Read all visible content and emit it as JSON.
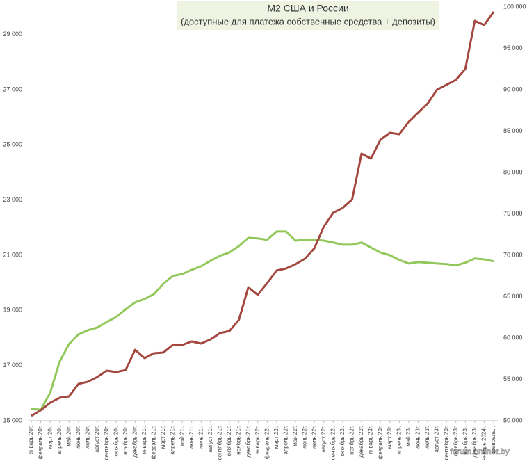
{
  "chart_data": {
    "type": "line",
    "title": "М2 США и России",
    "subtitle": "(доступные для платежа собственные средства + депозиты)",
    "watermark": "forum.onliner.by",
    "categories": [
      "январь 20г.",
      "февраль 20г.",
      "март 20г.",
      "апрель 20г.",
      "май 20г.",
      "июнь 20г.",
      "июль 20г.",
      "август 20г.",
      "сентябрь 20г.",
      "октябрь 20г.",
      "ноябрь 20г.",
      "декабрь 20г.",
      "январь 21г.",
      "февраль 21г.",
      "март 21г.",
      "апрель 21г.",
      "май 21г.",
      "июнь 21г.",
      "июль 21г.",
      "август 21г.",
      "сентябрь 21г.",
      "октябрь 21г.",
      "ноябрь 21г.",
      "декабрь 21г.",
      "январь 22г.",
      "февраль 22г.",
      "март 22г.",
      "апрель 22г.",
      "май 22г.",
      "июнь 22г.",
      "июль 22г.",
      "август 22г.",
      "сентябрь 22г.",
      "октябрь 22г.",
      "ноябрь 22г.",
      "декабрь 22г.",
      "январь 23г.",
      "февраль 23г.",
      "март 23г.",
      "апрель 23г.",
      "май 23г.",
      "июнь 23г.",
      "июль 23г.",
      "август 23г.",
      "сентябрь 23г.",
      "октябрь 23г.",
      "ноябрь 23г.",
      "декабрь 23г.",
      "январь 2024г.",
      "февраль..."
    ],
    "series": [
      {
        "color": "#92c85a",
        "values": [
          15430,
          15400,
          16010,
          17140,
          17780,
          18130,
          18280,
          18380,
          18580,
          18760,
          19040,
          19290,
          19410,
          19590,
          19970,
          20250,
          20320,
          20470,
          20600,
          20800,
          20980,
          21100,
          21330,
          21630,
          21610,
          21560,
          21860,
          21860,
          21530,
          21560,
          21560,
          21530,
          21460,
          21380,
          21380,
          21460,
          21280,
          21100,
          21000,
          20830,
          20700,
          20750,
          20730,
          20700,
          20680,
          20630,
          20730,
          20880,
          20850,
          20780
        ]
      },
      {
        "color": "#a3473f",
        "axis": "y2",
        "values": [
          50590,
          51260,
          52180,
          52770,
          52940,
          54450,
          54710,
          55290,
          56050,
          55880,
          56130,
          58570,
          57560,
          58150,
          58240,
          59160,
          59160,
          59580,
          59330,
          59830,
          60590,
          60840,
          62180,
          66130,
          65210,
          66640,
          68150,
          68400,
          68910,
          69580,
          70840,
          73450,
          75130,
          75710,
          76720,
          82270,
          81680,
          83950,
          84790,
          84620,
          86130,
          87230,
          88320,
          90000,
          90590,
          91180,
          92520,
          98320,
          97820,
          99410
        ]
      }
    ],
    "ylim": [
      15000,
      30000
    ],
    "yticks": [
      {
        "value": 15000,
        "label": "15 000"
      },
      {
        "value": 17000,
        "label": "17 000"
      },
      {
        "value": 19000,
        "label": "19 000"
      },
      {
        "value": 21000,
        "label": "21 000"
      },
      {
        "value": 23000,
        "label": "23 000"
      },
      {
        "value": 25000,
        "label": "25 000"
      },
      {
        "value": 27000,
        "label": "27 000"
      },
      {
        "value": 29000,
        "label": "29 000"
      }
    ],
    "y2lim": [
      50000,
      100000
    ],
    "y2ticks": [
      {
        "value": 50000,
        "label": "50 000"
      },
      {
        "value": 55000,
        "label": "55 000"
      },
      {
        "value": 60000,
        "label": "60 000"
      },
      {
        "value": 65000,
        "label": "65 000"
      },
      {
        "value": 70000,
        "label": "70 000"
      },
      {
        "value": 75000,
        "label": "75 000"
      },
      {
        "value": 80000,
        "label": "80 000"
      },
      {
        "value": 85000,
        "label": "85 000"
      },
      {
        "value": 90000,
        "label": "90 000"
      },
      {
        "value": 95000,
        "label": "95 000"
      },
      {
        "value": {
          "value": 100000,
          "label": "100 000"
        }
      }
    ]
  }
}
